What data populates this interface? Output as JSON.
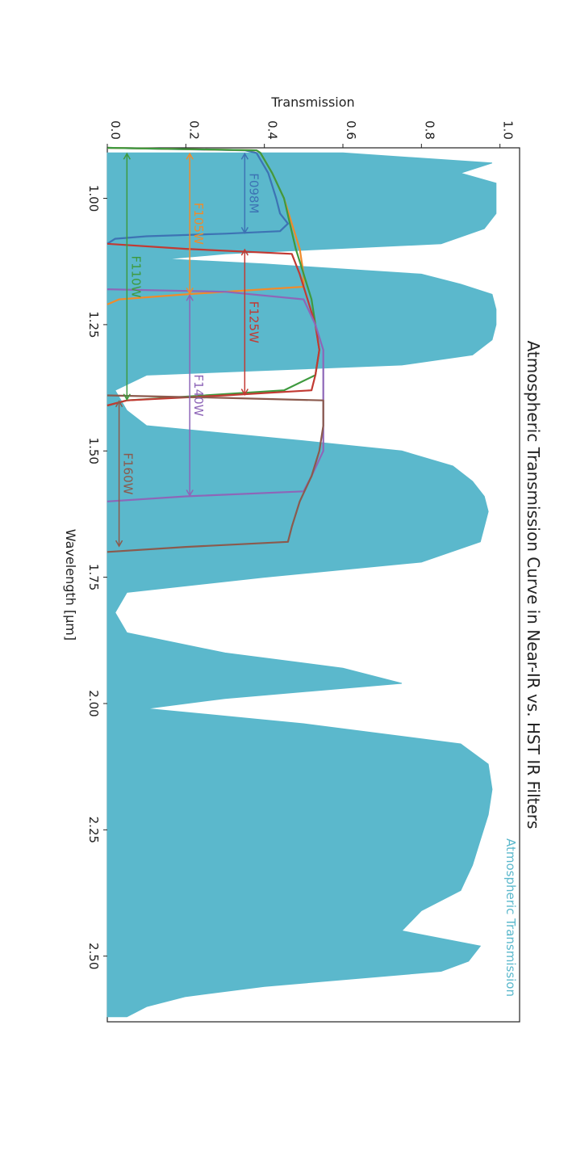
{
  "chart_data": {
    "type": "line",
    "title": "Atmospheric Transmission Curve in Near-IR vs. HST IR Filters",
    "xlabel": "Wavelength [μm]",
    "ylabel": "Transmission",
    "xlim": [
      0.9,
      2.63
    ],
    "ylim": [
      0.0,
      1.05
    ],
    "x_ticks": [
      "1.00",
      "1.25",
      "1.50",
      "1.75",
      "2.00",
      "2.25",
      "2.50"
    ],
    "y_ticks": [
      "0.0",
      "0.2",
      "0.4",
      "0.6",
      "0.8",
      "1.0"
    ],
    "orientation": "rotated 90° clockwise",
    "atmosphere": {
      "name": "Atmospheric Transmission",
      "color": "#5bb8cc",
      "points": [
        [
          0.91,
          0.6
        ],
        [
          0.93,
          0.98
        ],
        [
          0.95,
          0.9
        ],
        [
          0.97,
          0.99
        ],
        [
          1.0,
          0.99
        ],
        [
          1.03,
          0.99
        ],
        [
          1.06,
          0.96
        ],
        [
          1.09,
          0.85
        ],
        [
          1.11,
          0.3
        ],
        [
          1.12,
          0.15
        ],
        [
          1.13,
          0.4
        ],
        [
          1.15,
          0.8
        ],
        [
          1.17,
          0.9
        ],
        [
          1.19,
          0.98
        ],
        [
          1.22,
          0.99
        ],
        [
          1.25,
          0.99
        ],
        [
          1.28,
          0.98
        ],
        [
          1.31,
          0.93
        ],
        [
          1.33,
          0.75
        ],
        [
          1.35,
          0.1
        ],
        [
          1.38,
          0.02
        ],
        [
          1.42,
          0.05
        ],
        [
          1.45,
          0.1
        ],
        [
          1.48,
          0.5
        ],
        [
          1.5,
          0.75
        ],
        [
          1.53,
          0.88
        ],
        [
          1.56,
          0.93
        ],
        [
          1.59,
          0.96
        ],
        [
          1.62,
          0.97
        ],
        [
          1.65,
          0.96
        ],
        [
          1.68,
          0.95
        ],
        [
          1.72,
          0.8
        ],
        [
          1.75,
          0.4
        ],
        [
          1.78,
          0.05
        ],
        [
          1.82,
          0.02
        ],
        [
          1.86,
          0.05
        ],
        [
          1.9,
          0.3
        ],
        [
          1.93,
          0.6
        ],
        [
          1.96,
          0.75
        ],
        [
          1.99,
          0.3
        ],
        [
          2.01,
          0.1
        ],
        [
          2.04,
          0.5
        ],
        [
          2.06,
          0.7
        ],
        [
          2.08,
          0.9
        ],
        [
          2.12,
          0.97
        ],
        [
          2.17,
          0.98
        ],
        [
          2.22,
          0.97
        ],
        [
          2.27,
          0.95
        ],
        [
          2.32,
          0.93
        ],
        [
          2.37,
          0.9
        ],
        [
          2.41,
          0.8
        ],
        [
          2.45,
          0.75
        ],
        [
          2.48,
          0.95
        ],
        [
          2.51,
          0.92
        ],
        [
          2.53,
          0.85
        ],
        [
          2.56,
          0.4
        ],
        [
          2.58,
          0.2
        ],
        [
          2.6,
          0.1
        ],
        [
          2.62,
          0.05
        ]
      ]
    },
    "series": [
      {
        "name": "F098M",
        "color": "#3d73b4",
        "x": [
          0.9,
          0.905,
          0.91,
          0.95,
          1.0,
          1.03,
          1.05,
          1.065,
          1.07,
          1.075,
          1.08,
          1.09
        ],
        "y": [
          0.0,
          0.35,
          0.38,
          0.41,
          0.43,
          0.44,
          0.46,
          0.44,
          0.3,
          0.1,
          0.02,
          0.0
        ]
      },
      {
        "name": "F105W",
        "color": "#f08b2b",
        "x": [
          0.9,
          0.905,
          0.91,
          0.95,
          1.0,
          1.05,
          1.1,
          1.15,
          1.175,
          1.19,
          1.2,
          1.21
        ],
        "y": [
          0.0,
          0.38,
          0.39,
          0.42,
          0.45,
          0.47,
          0.49,
          0.5,
          0.5,
          0.2,
          0.03,
          0.0
        ]
      },
      {
        "name": "F110W",
        "color": "#3e9a3f",
        "x": [
          0.9,
          0.905,
          0.91,
          0.95,
          1.0,
          1.1,
          1.2,
          1.3,
          1.35,
          1.38,
          1.4,
          1.41
        ],
        "y": [
          0.0,
          0.38,
          0.39,
          0.42,
          0.45,
          0.48,
          0.52,
          0.54,
          0.53,
          0.45,
          0.05,
          0.0
        ]
      },
      {
        "name": "F125W",
        "color": "#c23a33",
        "x": [
          1.09,
          1.1,
          1.11,
          1.15,
          1.2,
          1.25,
          1.3,
          1.35,
          1.38,
          1.39,
          1.4,
          1.41
        ],
        "y": [
          0.0,
          0.2,
          0.47,
          0.49,
          0.51,
          0.53,
          0.54,
          0.53,
          0.52,
          0.3,
          0.05,
          0.0
        ]
      },
      {
        "name": "F140W",
        "color": "#8e66b8",
        "x": [
          1.18,
          1.185,
          1.2,
          1.25,
          1.3,
          1.35,
          1.4,
          1.45,
          1.5,
          1.55,
          1.58,
          1.59,
          1.6
        ],
        "y": [
          0.0,
          0.3,
          0.5,
          0.53,
          0.55,
          0.55,
          0.55,
          0.55,
          0.55,
          0.52,
          0.5,
          0.2,
          0.0
        ]
      },
      {
        "name": "F160W",
        "color": "#8b5a4d",
        "x": [
          1.39,
          1.395,
          1.4,
          1.45,
          1.5,
          1.55,
          1.6,
          1.65,
          1.68,
          1.69,
          1.7
        ],
        "y": [
          0.0,
          0.3,
          0.55,
          0.55,
          0.54,
          0.52,
          0.49,
          0.47,
          0.46,
          0.2,
          0.0
        ]
      }
    ],
    "filter_bands": [
      {
        "name": "F098M",
        "color": "#3d73b4",
        "x_start": 0.91,
        "x_end": 1.07,
        "y": 0.35
      },
      {
        "name": "F105W",
        "color": "#f08b2b",
        "x_start": 0.91,
        "x_end": 1.19,
        "y": 0.21
      },
      {
        "name": "F110W",
        "color": "#3e9a3f",
        "x_start": 0.91,
        "x_end": 1.4,
        "y": 0.05
      },
      {
        "name": "F125W",
        "color": "#c23a33",
        "x_start": 1.1,
        "x_end": 1.39,
        "y": 0.35
      },
      {
        "name": "F140W",
        "color": "#8e66b8",
        "x_start": 1.19,
        "x_end": 1.59,
        "y": 0.21
      },
      {
        "name": "F160W",
        "color": "#8b5a4d",
        "x_start": 1.4,
        "x_end": 1.69,
        "y": 0.03
      }
    ]
  }
}
